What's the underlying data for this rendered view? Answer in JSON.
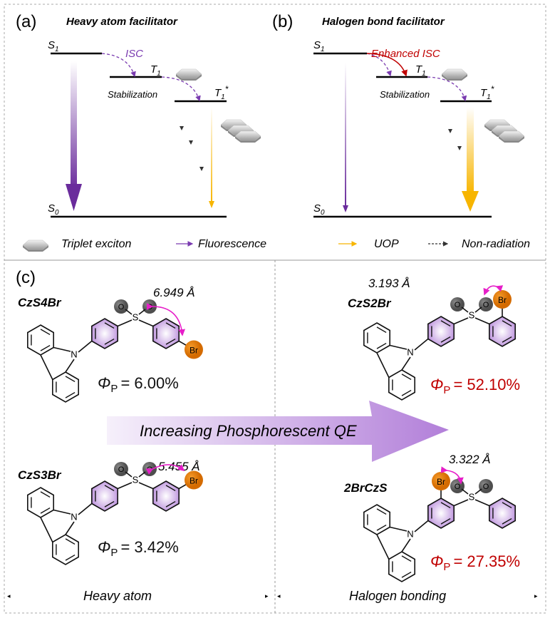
{
  "panel_a": {
    "label": "(a)",
    "title": "Heavy atom facilitator",
    "s1": "S",
    "s1_sub": "1",
    "t1": "T",
    "t1_sub": "1",
    "t1star": "T",
    "t1star_sub": "1",
    "t1star_sup": "*",
    "s0": "S",
    "s0_sub": "0",
    "isc": "ISC",
    "stabilization": "Stabilization"
  },
  "panel_b": {
    "label": "(b)",
    "title": "Halogen bond facilitator",
    "s1": "S",
    "s1_sub": "1",
    "t1": "T",
    "t1_sub": "1",
    "t1star": "T",
    "t1star_sub": "1",
    "t1star_sup": "*",
    "s0": "S",
    "s0_sub": "0",
    "isc": "Enhanced ISC",
    "stabilization": "Stabilization"
  },
  "legend": {
    "triplet": "Triplet exciton",
    "fluorescence": "Fluorescence",
    "uop": "UOP",
    "nonrad": "Non-radiation"
  },
  "panel_c": {
    "label": "(c)",
    "arrow_text": "Increasing Phosphorescent QE",
    "left_caption": "Heavy atom",
    "right_caption": "Halogen bonding",
    "phi_symbol": "Φ",
    "phi_sub": "P",
    "molecules": [
      {
        "name": "CzS4Br",
        "distance": "6.949 Å",
        "qy": "= 6.00%"
      },
      {
        "name": "CzS3Br",
        "distance": "5.455 Å",
        "qy": "= 3.42%"
      },
      {
        "name": "CzS2Br",
        "distance": "3.193 Å",
        "qy": "= 52.10%"
      },
      {
        "name": "2BrCzS",
        "distance": "3.322 Å",
        "qy": "= 27.35%"
      }
    ],
    "atoms": {
      "o": "O",
      "s": "S",
      "n": "N",
      "br": "Br"
    }
  },
  "colors": {
    "fluorescence": "#6a2c9c",
    "uop": "#f7b500",
    "isc_enhanced": "#c00000",
    "isc": "#7a3bb0",
    "distance_arrow": "#e61ec8",
    "bromine": "#e07a00",
    "oxygen": "#666666",
    "phenyl": "#c9a6e2",
    "highlight_qy": "#c00000"
  }
}
